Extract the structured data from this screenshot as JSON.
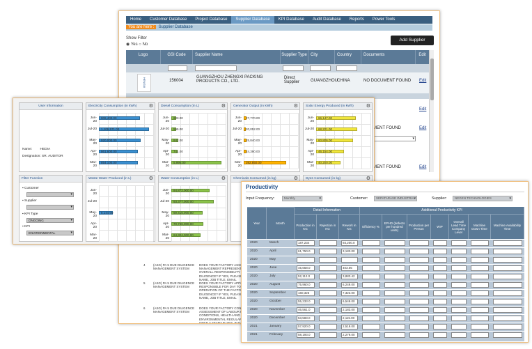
{
  "nav": [
    "Home",
    "Customer Database",
    "Project Database",
    "Supplier Database",
    "KPI Database",
    "Audit Database",
    "Reports",
    "Power Tools"
  ],
  "nav_active": 3,
  "breadcrumb": {
    "you_are_here": "You are here :",
    "page": "Supplier Database"
  },
  "show_filter": {
    "label": "Show Filter",
    "yes": "Yes",
    "no": "No"
  },
  "add_supplier_label": "Add Supplier",
  "supplier_table": {
    "headers": [
      "Logo",
      "GSI Code",
      "Supplier Name",
      "Supplier Type",
      "City",
      "Country",
      "Documents",
      "Edit"
    ],
    "row": {
      "gsi_code": "156004",
      "name": "GUANGZHOU ZHENGXI PACKING PRODUCTS CO., LTD.",
      "type": "Direct Supplier",
      "city": "GUANGZHOU",
      "country": "CHINA",
      "documents": "NO DOCUMENT FOUND",
      "edit": "Edit",
      "logo_text": "HENGXI"
    },
    "hidden_rows": [
      {
        "documents": "MENT FOUND",
        "edit": "Edit"
      },
      {
        "documents": "MENT FOUND",
        "edit": "Edit"
      },
      {
        "documents": "MENT FOUND",
        "edit": "Edit"
      }
    ]
  },
  "policy_rows": [
    {
      "num": "",
      "cat": "MANAGEMENT SYSTEM",
      "q": "PLEASE PROVIDE SPECIFIC COPY"
    },
    {
      "num": "4",
      "cat": "(ASG) PA 5 DUE DILIGENCE MANAGEMENT SYSTEM",
      "q": "DOES YOUR FACTORY ASSIGN A MANAGEMENT REPRESENTATIVE FOR THE OVERALL RESPONSIBILITY OF DUE DILIGENCE? IF YES, PLEASE INDICATE NAME, JOB TITLE, EMAIL"
    },
    {
      "num": "5",
      "cat": "(ASG) PA 5 DUE DILIGENCE MANAGEMENT SYSTEM",
      "q": "DOES YOUR FACTORY APPOINT A STAFF RESPONSIBLE FOR DAY TO DAY OPERATION OF THE FACTORY'S DUE DILIGENCE? IF YES, PLEASE INDICATE NAME, JOB TITLE, EMAIL"
    },
    {
      "num": "6",
      "cat": "(ASG) PA 5 DUE DILIGENCE MANAGEMENT SYSTEM",
      "q": "DOES YOUR FACTORY CONDUCT RISK ASSESSMENT OF LABOUR RIGHTS, HIRING CONDITIONS, HEALTH AND SAFETY, AND ENVIRONMENTAL REGULARLY, AT LEAST ONCE A YEAR? IF YES, PLEASE UPLOAD A COPY OF YOUR LAST RISK ASSESSMENT REPORT"
    }
  ],
  "user_info": {
    "title": "User Information",
    "name_label": "Name:",
    "name": "HEDIA",
    "designation_label": "Designation:",
    "designation": "SR. AUDITOR"
  },
  "filter_function": {
    "title": "Filter Function",
    "customer_label": "Customer",
    "supplier_label": "Supplier",
    "kpi_type_label": "KPI Type",
    "kpi_type": "ONGOING",
    "kpi_label": "KPI",
    "kpi": "ENVIRONMENTAL"
  },
  "chart_data": [
    {
      "type": "bar",
      "title": "Electricity Consumption (in kWh)",
      "categories": [
        "Jun-20",
        "Jul-20",
        "May-20",
        "Apr-20",
        "Mar-20"
      ],
      "values": [
        906400,
        1109571,
        920000,
        861600,
        854100
      ],
      "labels": [
        "906,400.00",
        "1,109,571.00",
        "920,000.00",
        "861,600.00",
        "854,100.00"
      ],
      "xlim": [
        0,
        1200000
      ],
      "color": "#3a8fd0"
    },
    {
      "type": "bar",
      "title": "Diesel Consumption (in L)",
      "categories": [
        "Jun-20",
        "Jul-20",
        "May-20",
        "Apr-20",
        "Mar-20"
      ],
      "values": [
        603,
        595,
        842,
        741,
        5996
      ],
      "labels": [
        "603.00",
        "595.00",
        "842.00",
        "741.00",
        "5,996.00"
      ],
      "xlim": [
        0,
        6500
      ],
      "color": "#8bc34a"
    },
    {
      "type": "bar",
      "title": "Generator Output (in kWh)",
      "categories": [
        "Jun-20",
        "Jul-20",
        "May-20",
        "Apr-20",
        "Mar-20"
      ],
      "values": [
        27770,
        20052,
        25840,
        24390,
        392850
      ],
      "labels": [
        "27,770.00",
        "20,052.00",
        "25,840.00",
        "24,390.00",
        "392,850.00"
      ],
      "xlim": [
        0,
        500000
      ],
      "color": "#ffb300"
    },
    {
      "type": "bar",
      "title": "Solar Energy Produced (in kWh)",
      "categories": [
        "Jun-20",
        "Jul-20",
        "May-20",
        "Apr-20",
        "Mar-20"
      ],
      "values": [
        66147,
        68221,
        60806,
        46154,
        40200
      ],
      "labels": [
        "66,147.00",
        "68,221.00",
        "60,806.00",
        "46,154.00",
        "40,200.00"
      ],
      "xlim": [
        0,
        90000
      ],
      "color": "#f0e63c"
    },
    {
      "type": "bar",
      "title": "Waste Water Produced (in L)",
      "categories": [
        "Jun-20",
        "Jul-20",
        "May-20",
        "Apr-20",
        "Mar-20"
      ],
      "values": [
        0,
        0,
        5144,
        0,
        0
      ],
      "labels": [
        "",
        "",
        "5,144.00",
        "",
        ""
      ],
      "xlim": [
        0,
        20000
      ],
      "color": "#3a8fd0"
    },
    {
      "type": "bar",
      "title": "Water Consumption (in L)",
      "categories": [
        "Jun-20",
        "Jul-20",
        "May-20",
        "Apr-20",
        "Mar-20"
      ],
      "values": [
        84872000,
        93377000,
        69415000,
        70736000,
        64304000
      ],
      "labels": [
        "84,872,000.00",
        "93,377,000.00",
        "69,415,000.00",
        "70,736,000.00",
        "64,304,000.00"
      ],
      "xlim": [
        0,
        120000000
      ],
      "color": "#8bc34a"
    },
    {
      "type": "bar",
      "title": "Chemicals Consumed (in kg)",
      "categories": [],
      "values": [],
      "color": "#ffb300"
    },
    {
      "type": "bar",
      "title": "Dyes Consumed (in kg)",
      "categories": [],
      "values": [],
      "color": "#f0e63c"
    }
  ],
  "productivity": {
    "title": "Productivity",
    "input_frequency_label": "Input Frequency:",
    "input_frequency": "Monthly",
    "customer_label": "Customer:",
    "customer": "SEPATARASE INDUSTRIA",
    "supplier_label": "Supplier:",
    "supplier": "NEGEN TECHNOLOGIES",
    "group_headers": [
      "Detail Information",
      "Additional Productivity KPI"
    ],
    "headers": [
      "Year",
      "Month",
      "Production in KG",
      "Rejection in KG",
      "Rework in KG",
      "Efficiency %",
      "EPHD (defects per hundred units)",
      "Production per Person",
      "WIP",
      "Overall Lead Time Company Level",
      "Machine Down Time",
      "Machine Availability Time"
    ],
    "rows": [
      {
        "year": "2020",
        "month": "March",
        "production": "187,234",
        "rework": "93,200.0"
      },
      {
        "year": "2020",
        "month": "April",
        "production": "61,750.0",
        "rework": "3,183.00"
      },
      {
        "year": "2020",
        "month": "May",
        "production": "",
        "rework": ""
      },
      {
        "year": "2020",
        "month": "June",
        "production": "45,658.0",
        "rework": "403.05"
      },
      {
        "year": "2020",
        "month": "July",
        "production": "52,112.0",
        "rework": "3,883.42"
      },
      {
        "year": "2020",
        "month": "August",
        "production": "75,960.0",
        "rework": "6,249.00"
      },
      {
        "year": "2020",
        "month": "September",
        "production": "160,325",
        "rework": "7,323.00"
      },
      {
        "year": "2020",
        "month": "October",
        "production": "55,233.0",
        "rework": "6,549.00"
      },
      {
        "year": "2020",
        "month": "November",
        "production": "46,561.0",
        "rework": "2,183.00"
      },
      {
        "year": "2020",
        "month": "December",
        "production": "53,583.0",
        "rework": "2,115.00"
      },
      {
        "year": "2021",
        "month": "January",
        "production": "57,920.0",
        "rework": "2,519.00"
      },
      {
        "year": "2021",
        "month": "February",
        "production": "58,193.0",
        "rework": "2,279.00"
      }
    ]
  }
}
